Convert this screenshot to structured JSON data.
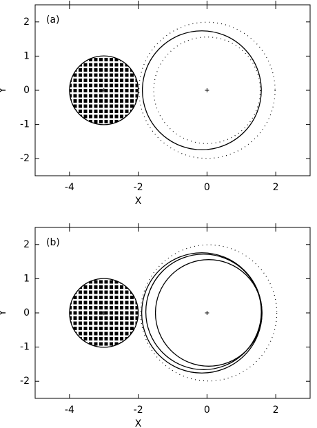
{
  "chart_data": [
    {
      "type": "circles",
      "label": "(a)",
      "xlabel": "X",
      "ylabel": "Y",
      "xlim": [
        -5,
        3
      ],
      "ylim": [
        -2.5,
        2.5
      ],
      "xticks": [
        -4,
        -2,
        0,
        2
      ],
      "yticks": [
        -2,
        -1,
        0,
        1,
        2
      ],
      "circles": [
        {
          "x": -3,
          "y": 0,
          "r": 1,
          "style": "hatched"
        },
        {
          "x": -0.15,
          "y": 0,
          "r": 1.73,
          "style": "solid"
        },
        {
          "x": 0,
          "y": 0,
          "r": 1.98,
          "style": "dotted"
        },
        {
          "x": 0,
          "y": 0,
          "r": 1.55,
          "style": "dotted"
        }
      ],
      "points": {
        "x": [
          -3,
          0
        ],
        "y": [
          0,
          0
        ]
      }
    },
    {
      "type": "circles",
      "label": "(b)",
      "xlabel": "X",
      "ylabel": "Y",
      "xlim": [
        -5,
        3
      ],
      "ylim": [
        -2.5,
        2.5
      ],
      "xticks": [
        -4,
        -2,
        0,
        2
      ],
      "yticks": [
        -2,
        -1,
        0,
        1,
        2
      ],
      "circles": [
        {
          "x": -3,
          "y": 0,
          "r": 1,
          "style": "hatched"
        },
        {
          "x": -0.15,
          "y": 0,
          "r": 1.75,
          "style": "solid"
        },
        {
          "x": -0.1,
          "y": 0.03,
          "r": 1.68,
          "style": "solid"
        },
        {
          "x": 0.05,
          "y": 0,
          "r": 1.55,
          "style": "solid"
        },
        {
          "x": 0.05,
          "y": 0,
          "r": 1.98,
          "style": "dotted"
        }
      ],
      "points": {
        "x": [
          -3,
          0
        ],
        "y": [
          0,
          0
        ]
      }
    }
  ]
}
